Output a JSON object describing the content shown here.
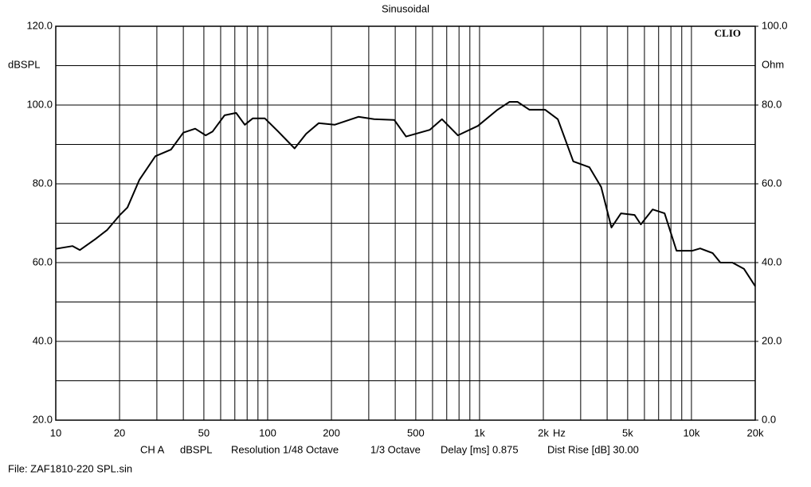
{
  "chart_data": {
    "type": "line",
    "title": "Sinusoidal",
    "logo": "CLIO",
    "y_label": "dBSPL",
    "y2_label": "Ohm",
    "x_unit": "Hz",
    "x_log": true,
    "xlim": [
      10,
      20000
    ],
    "xticks": [
      10,
      20,
      50,
      100,
      200,
      500,
      {
        "value": 1000,
        "label": "1k"
      },
      {
        "value": 2000,
        "label": "2k"
      },
      {
        "value": 5000,
        "label": "5k"
      },
      {
        "value": 10000,
        "label": "10k"
      },
      {
        "value": 20000,
        "label": "20k"
      }
    ],
    "xgrid": [
      30,
      40,
      60,
      70,
      80,
      90,
      300,
      400,
      600,
      700,
      800,
      900,
      3000,
      4000,
      6000,
      7000,
      8000,
      9000
    ],
    "ylim": [
      20,
      120
    ],
    "yticks": [
      {
        "value": 20,
        "label": "20.0"
      },
      {
        "value": 40,
        "label": "40.0"
      },
      {
        "value": 60,
        "label": "60.0"
      },
      {
        "value": 80,
        "label": "80.0"
      },
      {
        "value": 100,
        "label": "100.0"
      },
      {
        "value": 120,
        "label": "120.0"
      }
    ],
    "ygrid": [
      30,
      50,
      70,
      90,
      110
    ],
    "y2lim": [
      0,
      100
    ],
    "y2ticks": [
      {
        "value": 0,
        "label": "0.0"
      },
      {
        "value": 20,
        "label": "20.0"
      },
      {
        "value": 40,
        "label": "40.0"
      },
      {
        "value": 60,
        "label": "60.0"
      },
      {
        "value": 80,
        "label": "80.0"
      },
      {
        "value": 100,
        "label": "100.0"
      }
    ],
    "grid": true,
    "x": [
      10,
      12,
      13,
      15.4,
      17.5,
      20,
      21.8,
      24.8,
      29.5,
      35,
      40,
      45.5,
      51,
      55,
      62.6,
      71,
      78,
      85,
      97,
      112,
      134,
      152,
      174,
      207,
      268,
      318,
      396,
      450,
      582,
      665,
      790,
      982,
      1215,
      1385,
      1510,
      1720,
      2040,
      2340,
      2770,
      3300,
      3750,
      4190,
      4650,
      5390,
      5770,
      6560,
      7470,
      8500,
      10100,
      11000,
      12600,
      13700,
      15600,
      17700,
      20000
    ],
    "series": [
      {
        "color": "#000000",
        "values": [
          63.5,
          64.2,
          63.2,
          66,
          68.3,
          72,
          74,
          81,
          87,
          88.7,
          93,
          94,
          92.3,
          93.3,
          97.4,
          98,
          95,
          96.6,
          96.6,
          93.3,
          89,
          92.7,
          95.4,
          95,
          97,
          96.4,
          96.2,
          92,
          93.7,
          96.4,
          92.3,
          94.7,
          98.8,
          100.8,
          100.8,
          98.8,
          98.8,
          96.4,
          85.7,
          84.2,
          79.2,
          68.9,
          72.5,
          72.1,
          69.7,
          73.5,
          72.5,
          63,
          63,
          63.6,
          62.4,
          60,
          60,
          58.4,
          54
        ]
      }
    ],
    "annotations": [
      "CH A",
      "dBSPL",
      "Resolution 1/48 Octave",
      "1/3 Octave",
      "Delay [ms] 0.875",
      "Dist Rise [dB] 30.00"
    ],
    "file_label": "File: ZAF1810-220 SPL.sin"
  }
}
